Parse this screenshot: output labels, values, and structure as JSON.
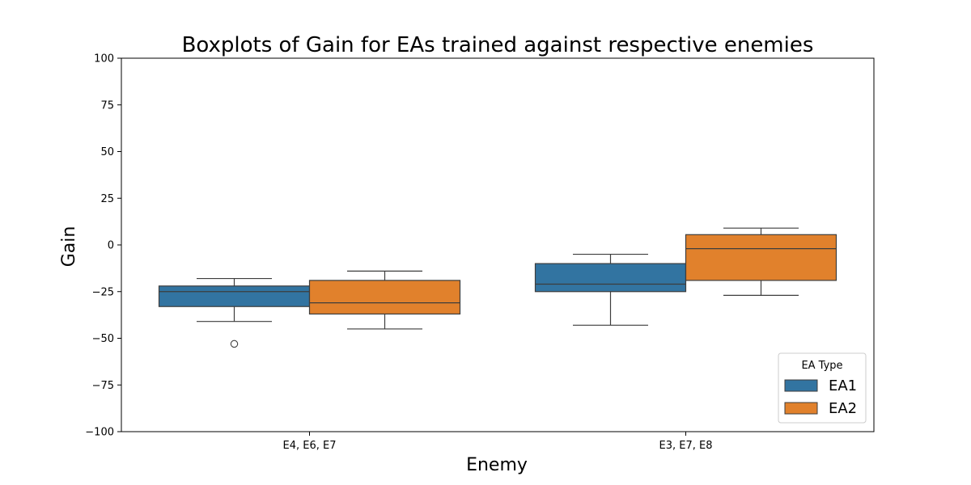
{
  "chart_data": {
    "type": "boxplot",
    "title": "Boxplots of Gain for EAs trained against respective enemies",
    "xlabel": "Enemy",
    "ylabel": "Gain",
    "ylim": [
      -100,
      100
    ],
    "yticks": [
      -100,
      -75,
      -50,
      -25,
      0,
      25,
      50,
      75,
      100
    ],
    "ytick_labels": [
      "−100",
      "−75",
      "−50",
      "−25",
      "0",
      "25",
      "50",
      "75",
      "100"
    ],
    "categories": [
      "E4, E6, E7",
      "E3, E7, E8"
    ],
    "grid": false,
    "legend": {
      "title": "EA Type",
      "position": "lower-right"
    },
    "series": [
      {
        "name": "EA1",
        "color": "#3274a1",
        "boxes": [
          {
            "whisker_low": -41,
            "q1": -33,
            "median": -25,
            "q3": -22,
            "whisker_high": -18,
            "outliers": [
              -53
            ]
          },
          {
            "whisker_low": -43,
            "q1": -25,
            "median": -21,
            "q3": -10,
            "whisker_high": -5,
            "outliers": []
          }
        ]
      },
      {
        "name": "EA2",
        "color": "#e1812c",
        "boxes": [
          {
            "whisker_low": -45,
            "q1": -37,
            "median": -31,
            "q3": -19,
            "whisker_high": -14,
            "outliers": []
          },
          {
            "whisker_low": -27,
            "q1": -19,
            "median": -2,
            "q3": 5.5,
            "whisker_high": 9,
            "outliers": []
          }
        ]
      }
    ]
  }
}
